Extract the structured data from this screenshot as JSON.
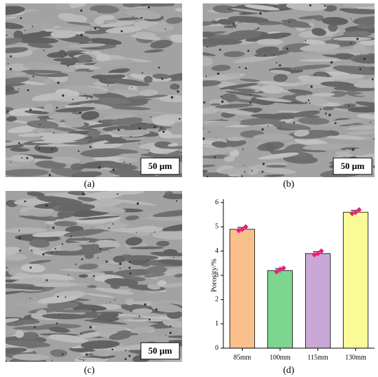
{
  "panels": [
    {
      "label": "(a)",
      "scale_bar": "50 µm"
    },
    {
      "label": "(b)",
      "scale_bar": "50 µm"
    },
    {
      "label": "(c)",
      "scale_bar": "50 µm"
    },
    {
      "label": "(d)"
    }
  ],
  "chart_data": {
    "type": "bar",
    "y_label": "Porosity/%",
    "categories": [
      "85mm",
      "100mm",
      "115mm",
      "130mm"
    ],
    "values": [
      4.9,
      3.2,
      3.9,
      5.6
    ],
    "errors": [
      0.08,
      0.08,
      0.08,
      0.08
    ],
    "points": [
      [
        4.85,
        4.9,
        5.0
      ],
      [
        3.15,
        3.25,
        3.3
      ],
      [
        3.85,
        3.9,
        4.0
      ],
      [
        5.55,
        5.6,
        5.7
      ]
    ],
    "colors": [
      "#f9c08c",
      "#7dd68f",
      "#c9a8d8",
      "#fafa96"
    ],
    "point_color": "#e8207a",
    "ylim": [
      0,
      6
    ],
    "yticks": [
      0,
      1,
      2,
      3,
      4,
      5,
      6
    ]
  }
}
